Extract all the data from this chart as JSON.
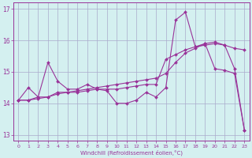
{
  "xlabel": "Windchill (Refroidissement éolien,°C)",
  "background_color": "#d4f0f0",
  "line_color": "#993399",
  "grid_color": "#aaaacc",
  "xlim": [
    -0.5,
    23.5
  ],
  "ylim": [
    12.8,
    17.2
  ],
  "yticks": [
    13,
    14,
    15,
    16,
    17
  ],
  "xticks": [
    0,
    1,
    2,
    3,
    4,
    5,
    6,
    7,
    8,
    9,
    10,
    11,
    12,
    13,
    14,
    15,
    16,
    17,
    18,
    19,
    20,
    21,
    22,
    23
  ],
  "series": [
    [
      14.1,
      14.5,
      14.2,
      15.3,
      14.7,
      14.45,
      14.45,
      14.6,
      14.45,
      14.4,
      14.0,
      14.0,
      14.1,
      14.35,
      14.2,
      14.5,
      16.65,
      16.9,
      15.8,
      15.9,
      15.1,
      15.05,
      14.95,
      13.15
    ],
    [
      14.1,
      14.1,
      14.2,
      14.2,
      14.35,
      14.35,
      14.35,
      14.4,
      14.45,
      14.45,
      14.45,
      14.5,
      14.55,
      14.6,
      14.6,
      15.4,
      15.55,
      15.7,
      15.8,
      15.85,
      15.9,
      15.85,
      15.1,
      13.15
    ],
    [
      14.1,
      14.1,
      14.15,
      14.2,
      14.3,
      14.35,
      14.4,
      14.45,
      14.5,
      14.55,
      14.6,
      14.65,
      14.7,
      14.75,
      14.8,
      14.95,
      15.3,
      15.6,
      15.75,
      15.9,
      15.95,
      15.85,
      15.75,
      15.7
    ]
  ]
}
